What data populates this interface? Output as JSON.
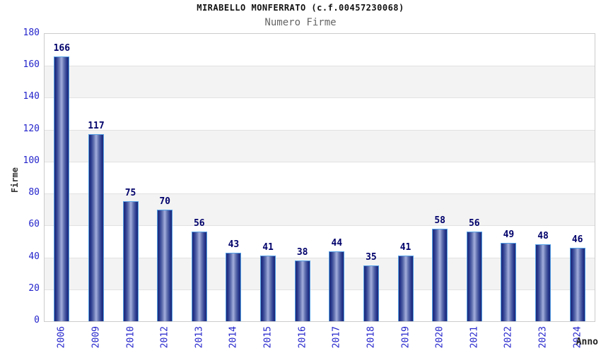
{
  "chart_data": {
    "type": "bar",
    "title": "MIRABELLO MONFERRATO (c.f.00457230068)",
    "subtitle": "Numero Firme",
    "xlabel": "Anno",
    "ylabel": "Firme",
    "categories": [
      "2006",
      "2009",
      "2010",
      "2012",
      "2013",
      "2014",
      "2015",
      "2016",
      "2017",
      "2018",
      "2019",
      "2020",
      "2021",
      "2022",
      "2023",
      "2024"
    ],
    "values": [
      166,
      117,
      75,
      70,
      56,
      43,
      41,
      38,
      44,
      35,
      41,
      58,
      56,
      49,
      48,
      46
    ],
    "ylim": [
      0,
      180
    ],
    "yticks": [
      0,
      20,
      40,
      60,
      80,
      100,
      120,
      140,
      160,
      180
    ],
    "grid": "alternating-horizontal-bands",
    "legend": "none",
    "colors": {
      "bar_dark": "#1c2a76",
      "bar_light": "#a3aedc",
      "bar_border": "#55a0e6",
      "value_label": "#00006b",
      "tick_text": "#2424cc",
      "band_gray": "#f3f3f3",
      "band_line": "#e2e2e2",
      "plot_border": "#cccccc",
      "subtitle_text": "#666666",
      "axis_label_text": "#333333"
    }
  }
}
